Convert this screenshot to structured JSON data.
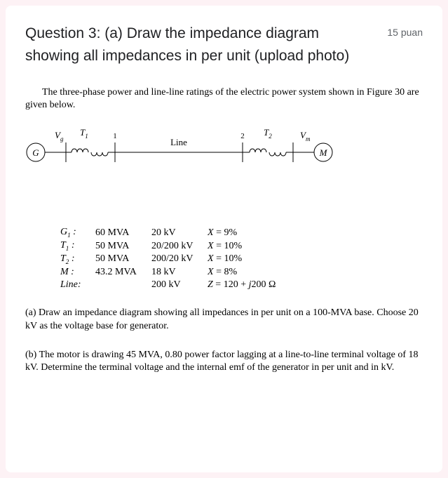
{
  "header": {
    "title": "Question 3: (a) Draw the impedance diagram showing all impedances in per unit (upload photo)",
    "points": "15 puan"
  },
  "desc": "The three-phase power and line-line ratings of the electric power system shown in Figure 30 are given below.",
  "diagram": {
    "labels": {
      "G": "G",
      "Vg": "V",
      "Vg_sub": "g",
      "T1": "T",
      "T1_sub": "1",
      "node1": "1",
      "Line": "Line",
      "node2": "2",
      "T2": "T",
      "T2_sub": "2",
      "Vm": "V",
      "Vm_sub": "m",
      "M": "M"
    },
    "colors": {
      "stroke": "#000000",
      "fill": "#ffffff"
    }
  },
  "ratings": {
    "rows": [
      {
        "name": "G",
        "sub": "1",
        "suffix": " :",
        "mva": "60 MVA",
        "kv": "20 kV",
        "imp": "X = 9%"
      },
      {
        "name": "T",
        "sub": "1",
        "suffix": " :",
        "mva": "50 MVA",
        "kv": "20/200 kV",
        "imp": "X = 10%"
      },
      {
        "name": "T",
        "sub": "2",
        "suffix": " :",
        "mva": "50 MVA",
        "kv": "200/20 kV",
        "imp": "X = 10%"
      },
      {
        "name": "M",
        "sub": "",
        "suffix": " :",
        "mva": "43.2 MVA",
        "kv": "18 kV",
        "imp": "X = 8%"
      },
      {
        "name": "Line:",
        "sub": "",
        "suffix": "",
        "mva": "",
        "kv": "200 kV",
        "imp": "Z = 120 + j200 Ω"
      }
    ]
  },
  "parts": {
    "a": "(a) Draw an impedance diagram showing all impedances in per unit on a 100-MVA base. Choose 20 kV as the voltage base for generator.",
    "b": "(b) The motor is drawing 45 MVA, 0.80 power factor lagging at a line-to-line terminal voltage of 18 kV. Determine the terminal voltage and the internal emf of the generator in per unit and in kV."
  }
}
